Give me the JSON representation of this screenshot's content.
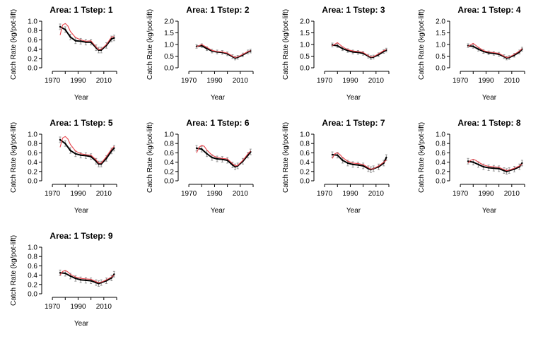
{
  "chart_data": [
    {
      "type": "line",
      "title": "Area:  1 Tstep:  1",
      "xlabel": "Year",
      "ylabel": "Catch Rate (kg/pot-lift)",
      "xlim": [
        1965,
        2020
      ],
      "ylim": [
        0,
        1
      ],
      "xticks": [
        "1970",
        "1990",
        "2010"
      ],
      "yticks": [
        "0.0",
        "0.2",
        "0.4",
        "0.6",
        "0.8",
        "1.0"
      ],
      "series": [
        {
          "role": "observed",
          "color": "#000000",
          "x": [
            1976,
            1980,
            1984,
            1988,
            1992,
            1996,
            2000,
            2004,
            2006,
            2008,
            2012,
            2016,
            2018
          ],
          "y": [
            0.88,
            0.82,
            0.66,
            0.58,
            0.57,
            0.55,
            0.55,
            0.43,
            0.38,
            0.38,
            0.48,
            0.62,
            0.64
          ],
          "err": 0.06
        },
        {
          "role": "predicted",
          "color": "#e8434b",
          "x": [
            1976,
            1978,
            1980,
            1982,
            1984,
            1988,
            1992,
            1996,
            2000,
            2004,
            2006,
            2008,
            2012,
            2016,
            2018
          ],
          "y": [
            0.7,
            0.92,
            0.95,
            0.9,
            0.78,
            0.65,
            0.6,
            0.57,
            0.58,
            0.45,
            0.39,
            0.4,
            0.5,
            0.66,
            0.67
          ]
        }
      ]
    },
    {
      "type": "line",
      "title": "Area:  1 Tstep:  2",
      "xlabel": "Year",
      "ylabel": "Catch Rate (kg/pot-lift)",
      "xlim": [
        1965,
        2020
      ],
      "ylim": [
        0,
        2
      ],
      "xticks": [
        "1970",
        "1990",
        "2010"
      ],
      "yticks": [
        "0.0",
        "0.5",
        "1.0",
        "1.5",
        "2.0"
      ],
      "series": [
        {
          "role": "observed",
          "color": "#000000",
          "x": [
            1976,
            1980,
            1984,
            1988,
            1992,
            1996,
            2000,
            2004,
            2006,
            2008,
            2012,
            2016,
            2018
          ],
          "y": [
            0.92,
            0.95,
            0.82,
            0.72,
            0.68,
            0.66,
            0.6,
            0.48,
            0.42,
            0.45,
            0.55,
            0.68,
            0.72
          ],
          "err": 0.08
        },
        {
          "role": "predicted",
          "color": "#e8434b",
          "x": [
            1976,
            1980,
            1984,
            1988,
            1992,
            1996,
            2000,
            2004,
            2006,
            2008,
            2012,
            2016,
            2018
          ],
          "y": [
            0.9,
            1.0,
            0.88,
            0.75,
            0.7,
            0.68,
            0.63,
            0.5,
            0.44,
            0.47,
            0.58,
            0.7,
            0.74
          ]
        }
      ]
    },
    {
      "type": "line",
      "title": "Area:  1 Tstep:  3",
      "xlabel": "Year",
      "ylabel": "Catch Rate (kg/pot-lift)",
      "xlim": [
        1965,
        2020
      ],
      "ylim": [
        0,
        2
      ],
      "xticks": [
        "1970",
        "1990",
        "2010"
      ],
      "yticks": [
        "0.0",
        "0.5",
        "1.0",
        "1.5",
        "2.0"
      ],
      "series": [
        {
          "role": "observed",
          "color": "#000000",
          "x": [
            1976,
            1980,
            1984,
            1988,
            1992,
            1996,
            2000,
            2004,
            2006,
            2008,
            2012,
            2016,
            2018
          ],
          "y": [
            0.98,
            0.95,
            0.82,
            0.74,
            0.68,
            0.66,
            0.62,
            0.5,
            0.44,
            0.46,
            0.56,
            0.7,
            0.76
          ],
          "err": 0.08
        },
        {
          "role": "predicted",
          "color": "#e8434b",
          "x": [
            1976,
            1980,
            1984,
            1988,
            1992,
            1996,
            2000,
            2004,
            2006,
            2008,
            2012,
            2016,
            2018
          ],
          "y": [
            0.95,
            1.08,
            0.9,
            0.78,
            0.72,
            0.7,
            0.66,
            0.52,
            0.46,
            0.48,
            0.6,
            0.74,
            0.78
          ]
        }
      ]
    },
    {
      "type": "line",
      "title": "Area:  1 Tstep:  4",
      "xlabel": "Year",
      "ylabel": "Catch Rate (kg/pot-lift)",
      "xlim": [
        1965,
        2020
      ],
      "ylim": [
        0,
        2
      ],
      "xticks": [
        "1970",
        "1990",
        "2010"
      ],
      "yticks": [
        "0.0",
        "0.5",
        "1.0",
        "1.5",
        "2.0"
      ],
      "series": [
        {
          "role": "observed",
          "color": "#000000",
          "x": [
            1976,
            1980,
            1984,
            1988,
            1992,
            1996,
            2000,
            2004,
            2006,
            2008,
            2012,
            2016,
            2018
          ],
          "y": [
            0.95,
            0.92,
            0.8,
            0.7,
            0.64,
            0.62,
            0.58,
            0.48,
            0.42,
            0.44,
            0.54,
            0.68,
            0.8
          ],
          "err": 0.08
        },
        {
          "role": "predicted",
          "color": "#e8434b",
          "x": [
            1976,
            1980,
            1984,
            1988,
            1992,
            1996,
            2000,
            2004,
            2006,
            2008,
            2012,
            2016,
            2018
          ],
          "y": [
            0.92,
            1.05,
            0.88,
            0.74,
            0.68,
            0.65,
            0.62,
            0.5,
            0.44,
            0.46,
            0.58,
            0.72,
            0.82
          ]
        }
      ]
    },
    {
      "type": "line",
      "title": "Area:  1 Tstep:  5",
      "xlabel": "Year",
      "ylabel": "Catch Rate (kg/pot-lift)",
      "xlim": [
        1965,
        2020
      ],
      "ylim": [
        0,
        1
      ],
      "xticks": [
        "1970",
        "1990",
        "2010"
      ],
      "yticks": [
        "0.0",
        "0.2",
        "0.4",
        "0.6",
        "0.8",
        "1.0"
      ],
      "series": [
        {
          "role": "observed",
          "color": "#000000",
          "x": [
            1976,
            1980,
            1984,
            1988,
            1992,
            1996,
            2000,
            2004,
            2006,
            2008,
            2012,
            2016,
            2018
          ],
          "y": [
            0.88,
            0.8,
            0.65,
            0.58,
            0.55,
            0.54,
            0.52,
            0.42,
            0.36,
            0.36,
            0.48,
            0.64,
            0.7
          ],
          "err": 0.06
        },
        {
          "role": "predicted",
          "color": "#e8434b",
          "x": [
            1976,
            1978,
            1980,
            1982,
            1984,
            1988,
            1992,
            1996,
            2000,
            2004,
            2006,
            2008,
            2012,
            2016,
            2018
          ],
          "y": [
            0.72,
            0.92,
            0.95,
            0.9,
            0.78,
            0.64,
            0.58,
            0.56,
            0.55,
            0.45,
            0.38,
            0.38,
            0.52,
            0.68,
            0.74
          ]
        }
      ]
    },
    {
      "type": "line",
      "title": "Area:  1 Tstep:  6",
      "xlabel": "Year",
      "ylabel": "Catch Rate (kg/pot-lift)",
      "xlim": [
        1965,
        2020
      ],
      "ylim": [
        0,
        1
      ],
      "xticks": [
        "1970",
        "1990",
        "2010"
      ],
      "yticks": [
        "0.0",
        "0.2",
        "0.4",
        "0.6",
        "0.8",
        "1.0"
      ],
      "series": [
        {
          "role": "observed",
          "color": "#000000",
          "x": [
            1976,
            1980,
            1984,
            1988,
            1992,
            1996,
            2000,
            2004,
            2006,
            2008,
            2012,
            2016,
            2018
          ],
          "y": [
            0.7,
            0.68,
            0.58,
            0.5,
            0.47,
            0.46,
            0.44,
            0.34,
            0.3,
            0.32,
            0.42,
            0.55,
            0.62
          ],
          "err": 0.06
        },
        {
          "role": "predicted",
          "color": "#e8434b",
          "x": [
            1976,
            1978,
            1980,
            1982,
            1984,
            1988,
            1992,
            1996,
            2000,
            2004,
            2006,
            2008,
            2012,
            2016,
            2018
          ],
          "y": [
            0.6,
            0.72,
            0.76,
            0.74,
            0.66,
            0.55,
            0.5,
            0.48,
            0.47,
            0.37,
            0.32,
            0.33,
            0.44,
            0.58,
            0.64
          ]
        }
      ]
    },
    {
      "type": "line",
      "title": "Area:  1 Tstep:  7",
      "xlabel": "Year",
      "ylabel": "Catch Rate (kg/pot-lift)",
      "xlim": [
        1965,
        2020
      ],
      "ylim": [
        0,
        1
      ],
      "xticks": [
        "1970",
        "1990",
        "2010"
      ],
      "yticks": [
        "0.0",
        "0.2",
        "0.4",
        "0.6",
        "0.8",
        "1.0"
      ],
      "series": [
        {
          "role": "observed",
          "color": "#000000",
          "x": [
            1976,
            1980,
            1984,
            1988,
            1992,
            1996,
            2000,
            2004,
            2006,
            2008,
            2012,
            2016,
            2018
          ],
          "y": [
            0.56,
            0.55,
            0.44,
            0.38,
            0.35,
            0.34,
            0.32,
            0.26,
            0.24,
            0.26,
            0.3,
            0.38,
            0.5
          ],
          "err": 0.06
        },
        {
          "role": "predicted",
          "color": "#e8434b",
          "x": [
            1976,
            1978,
            1980,
            1982,
            1984,
            1988,
            1992,
            1996,
            2000,
            2004,
            2006,
            2008,
            2012,
            2016,
            2018
          ],
          "y": [
            0.48,
            0.58,
            0.6,
            0.56,
            0.5,
            0.42,
            0.38,
            0.37,
            0.35,
            0.28,
            0.25,
            0.26,
            0.32,
            0.4,
            0.44
          ]
        }
      ]
    },
    {
      "type": "line",
      "title": "Area:  1 Tstep:  8",
      "xlabel": "Year",
      "ylabel": "Catch Rate (kg/pot-lift)",
      "xlim": [
        1965,
        2020
      ],
      "ylim": [
        0,
        1
      ],
      "xticks": [
        "1970",
        "1990",
        "2010"
      ],
      "yticks": [
        "0.0",
        "0.2",
        "0.4",
        "0.6",
        "0.8",
        "1.0"
      ],
      "series": [
        {
          "role": "observed",
          "color": "#000000",
          "x": [
            1976,
            1980,
            1984,
            1988,
            1992,
            1996,
            2000,
            2004,
            2006,
            2008,
            2012,
            2016,
            2018
          ],
          "y": [
            0.42,
            0.4,
            0.35,
            0.3,
            0.28,
            0.27,
            0.26,
            0.22,
            0.2,
            0.22,
            0.25,
            0.3,
            0.38
          ],
          "err": 0.06
        },
        {
          "role": "predicted",
          "color": "#e8434b",
          "x": [
            1976,
            1978,
            1980,
            1982,
            1984,
            1988,
            1992,
            1996,
            2000,
            2004,
            2006,
            2008,
            2012,
            2016,
            2018
          ],
          "y": [
            0.38,
            0.44,
            0.46,
            0.44,
            0.4,
            0.34,
            0.31,
            0.3,
            0.29,
            0.24,
            0.22,
            0.23,
            0.27,
            0.32,
            0.36
          ]
        }
      ]
    },
    {
      "type": "line",
      "title": "Area:  1 Tstep:  9",
      "xlabel": "Year",
      "ylabel": "Catch Rate (kg/pot-lift)",
      "xlim": [
        1965,
        2020
      ],
      "ylim": [
        0,
        1
      ],
      "xticks": [
        "1970",
        "1990",
        "2010"
      ],
      "yticks": [
        "0.0",
        "0.2",
        "0.4",
        "0.6",
        "0.8",
        "1.0"
      ],
      "series": [
        {
          "role": "observed",
          "color": "#000000",
          "x": [
            1976,
            1980,
            1984,
            1988,
            1992,
            1996,
            2000,
            2004,
            2006,
            2008,
            2012,
            2016,
            2018
          ],
          "y": [
            0.45,
            0.44,
            0.38,
            0.33,
            0.3,
            0.29,
            0.28,
            0.24,
            0.22,
            0.24,
            0.28,
            0.34,
            0.42
          ],
          "err": 0.06
        },
        {
          "role": "predicted",
          "color": "#e8434b",
          "x": [
            1976,
            1978,
            1980,
            1982,
            1984,
            1988,
            1992,
            1996,
            2000,
            2004,
            2006,
            2008,
            2012,
            2016,
            2018
          ],
          "y": [
            0.4,
            0.48,
            0.5,
            0.47,
            0.42,
            0.36,
            0.33,
            0.32,
            0.31,
            0.26,
            0.24,
            0.25,
            0.3,
            0.36,
            0.4
          ]
        }
      ]
    }
  ]
}
